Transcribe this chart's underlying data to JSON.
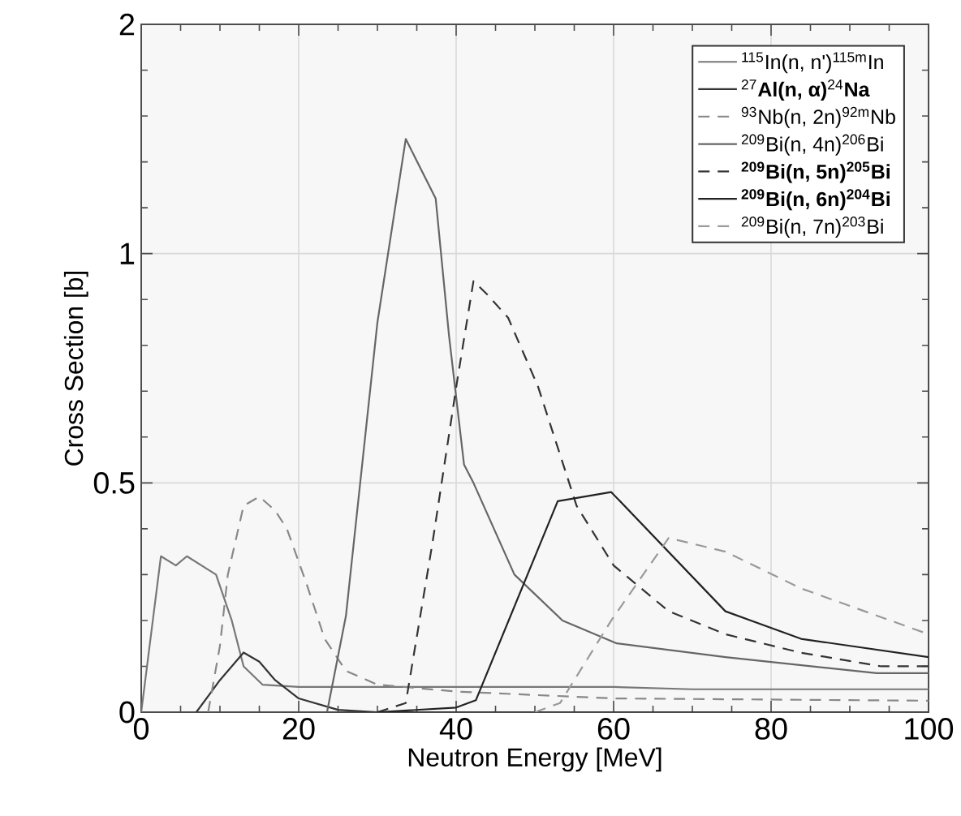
{
  "chart_data": {
    "type": "line",
    "xlabel": "Neutron Energy [MeV]",
    "ylabel": "Cross Section [b]",
    "xlim": [
      0,
      100
    ],
    "ylim": [
      0,
      1.5
    ],
    "xticks": [
      0,
      20,
      40,
      60,
      80,
      100
    ],
    "yticks": [
      0,
      0.5,
      1,
      {
        "value": 1.5,
        "label": "2"
      }
    ],
    "grid": true,
    "legend": "top right",
    "series": [
      {
        "name": "$^{115}$In(n, n')$^{115m}$In",
        "color": "#777777",
        "line_style": "solid",
        "x": [
          0,
          2.5,
          4.4,
          5.8,
          9.5,
          11.5,
          13,
          15.4,
          20,
          40,
          60,
          70,
          100
        ],
        "values": [
          0,
          0.34,
          0.32,
          0.34,
          0.3,
          0.2,
          0.1,
          0.06,
          0.055,
          0.055,
          0.055,
          0.05,
          0.05
        ]
      },
      {
        "name": "$^{27}$**Al(n, α)**$^{24}$**Na**",
        "color": "#333333",
        "line_style": "solid",
        "x": [
          7,
          10,
          13,
          15,
          17,
          20,
          25,
          30,
          100
        ],
        "values": [
          0,
          0.07,
          0.13,
          0.11,
          0.07,
          0.03,
          0.005,
          0,
          0
        ]
      },
      {
        "name": "$^{93}$Nb(n, 2n)$^{92m}$Nb",
        "color": "#888888",
        "line_style": "dashed",
        "x": [
          8.5,
          10,
          11,
          13,
          15,
          17,
          18.5,
          21,
          23.3,
          26,
          30,
          40,
          60,
          100
        ],
        "values": [
          0,
          0.145,
          0.3,
          0.45,
          0.47,
          0.44,
          0.4,
          0.28,
          0.16,
          0.09,
          0.06,
          0.045,
          0.03,
          0.025
        ]
      },
      {
        "name": "$^{209}$Bi(n, 4n)$^{206}$Bi",
        "color": "#666666",
        "line_style": "solid",
        "x": [
          23.6,
          26,
          30,
          33.6,
          37.4,
          39.1,
          41,
          42.2,
          47.4,
          53.5,
          60.4,
          74.2,
          93.4,
          100
        ],
        "values": [
          0,
          0.21,
          0.85,
          1.25,
          1.12,
          0.82,
          0.54,
          0.5,
          0.3,
          0.2,
          0.15,
          0.12,
          0.085,
          0.085
        ]
      },
      {
        "name": "**$^{209}$Bi(n, 5n)$^{205}$Bi**",
        "color": "#333333",
        "line_style": "dashed",
        "x": [
          30,
          33.6,
          37,
          40.2,
          42.2,
          44,
          46.6,
          50.4,
          55.3,
          60,
          67,
          74.2,
          83.7,
          94,
          100
        ],
        "values": [
          0,
          0.02,
          0.37,
          0.73,
          0.94,
          0.91,
          0.86,
          0.71,
          0.45,
          0.32,
          0.22,
          0.17,
          0.13,
          0.1,
          0.1
        ]
      },
      {
        "name": "**$^{209}$Bi(n, 6n)$^{204}$Bi**",
        "color": "#222222",
        "line_style": "solid",
        "x": [
          30,
          40,
          42.5,
          52.9,
          59.7,
          74.2,
          83.8,
          100
        ],
        "values": [
          0,
          0.01,
          0.026,
          0.46,
          0.48,
          0.22,
          0.16,
          0.12
        ]
      },
      {
        "name": "$^{209}$Bi(n, 7n)$^{203}$Bi",
        "color": "#999999",
        "line_style": "dashed",
        "x": [
          50,
          53.2,
          59.7,
          67,
          74.2,
          83.8,
          100
        ],
        "values": [
          0,
          0.02,
          0.2,
          0.38,
          0.35,
          0.27,
          0.17
        ]
      }
    ]
  }
}
